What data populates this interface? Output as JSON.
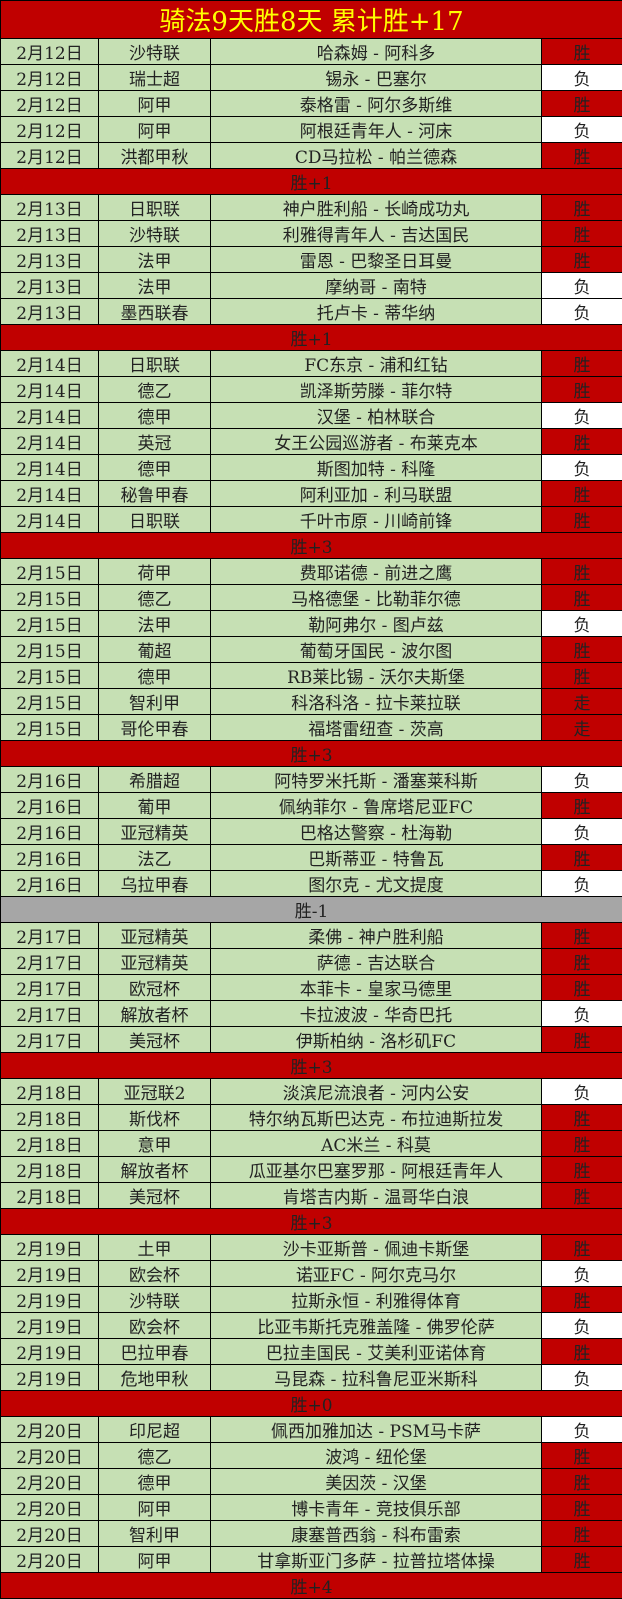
{
  "title": "骑法9天胜8天  累计胜+17",
  "colors": {
    "win": "#c00000",
    "loss": "#ffffff",
    "push": "#c00000",
    "row": "#c6e0b4",
    "summary": "#c00000",
    "summary_neutral": "#a6a6a6",
    "title_text": "#ffff00"
  },
  "groups": [
    {
      "rows": [
        [
          "2月12日",
          "沙特联",
          "哈森姆 - 阿科多",
          "胜"
        ],
        [
          "2月12日",
          "瑞士超",
          "锡永 - 巴塞尔",
          "负"
        ],
        [
          "2月12日",
          "阿甲",
          "泰格雷 - 阿尔多斯维",
          "胜"
        ],
        [
          "2月12日",
          "阿甲",
          "阿根廷青年人 - 河床",
          "负"
        ],
        [
          "2月12日",
          "洪都甲秋",
          "CD马拉松 - 帕兰德森",
          "胜"
        ]
      ],
      "summary": "胜+1"
    },
    {
      "rows": [
        [
          "2月13日",
          "日职联",
          "神户胜利船 - 长崎成功丸",
          "胜"
        ],
        [
          "2月13日",
          "沙特联",
          "利雅得青年人 - 吉达国民",
          "胜"
        ],
        [
          "2月13日",
          "法甲",
          "雷恩 - 巴黎圣日耳曼",
          "胜"
        ],
        [
          "2月13日",
          "法甲",
          "摩纳哥 - 南特",
          "负"
        ],
        [
          "2月13日",
          "墨西联春",
          "托卢卡 - 蒂华纳",
          "负"
        ]
      ],
      "summary": "胜+1"
    },
    {
      "rows": [
        [
          "2月14日",
          "日职联",
          "FC东京 - 浦和红钻",
          "胜"
        ],
        [
          "2月14日",
          "德乙",
          "凯泽斯劳滕 - 菲尔特",
          "胜"
        ],
        [
          "2月14日",
          "德甲",
          "汉堡 - 柏林联合",
          "负"
        ],
        [
          "2月14日",
          "英冠",
          "女王公园巡游者 - 布莱克本",
          "胜"
        ],
        [
          "2月14日",
          "德甲",
          "斯图加特 - 科隆",
          "负"
        ],
        [
          "2月14日",
          "秘鲁甲春",
          "阿利亚加 - 利马联盟",
          "胜"
        ],
        [
          "2月14日",
          "日职联",
          "千叶市原 - 川崎前锋",
          "胜"
        ]
      ],
      "summary": "胜+3"
    },
    {
      "rows": [
        [
          "2月15日",
          "荷甲",
          "费耶诺德 - 前进之鹰",
          "胜"
        ],
        [
          "2月15日",
          "德乙",
          "马格德堡 - 比勒菲尔德",
          "胜"
        ],
        [
          "2月15日",
          "法甲",
          "勒阿弗尔 - 图卢兹",
          "负"
        ],
        [
          "2月15日",
          "葡超",
          "葡萄牙国民 - 波尔图",
          "胜"
        ],
        [
          "2月15日",
          "德甲",
          "RB莱比锡 - 沃尔夫斯堡",
          "胜"
        ],
        [
          "2月15日",
          "智利甲",
          "科洛科洛 - 拉卡莱拉联",
          "走"
        ],
        [
          "2月15日",
          "哥伦甲春",
          "福塔雷纽查 - 茨高",
          "走"
        ]
      ],
      "summary": "胜+3"
    },
    {
      "rows": [
        [
          "2月16日",
          "希腊超",
          "阿特罗米托斯 - 潘塞莱科斯",
          "负"
        ],
        [
          "2月16日",
          "葡甲",
          "佩纳菲尔 - 鲁席塔尼亚FC",
          "胜"
        ],
        [
          "2月16日",
          "亚冠精英",
          "巴格达警察 - 杜海勒",
          "负"
        ],
        [
          "2月16日",
          "法乙",
          "巴斯蒂亚 - 特鲁瓦",
          "胜"
        ],
        [
          "2月16日",
          "乌拉甲春",
          "图尔克 - 尤文提度",
          "负"
        ]
      ],
      "summary": "胜-1",
      "neutral": true
    },
    {
      "rows": [
        [
          "2月17日",
          "亚冠精英",
          "柔佛 - 神户胜利船",
          "胜"
        ],
        [
          "2月17日",
          "亚冠精英",
          "萨德 - 吉达联合",
          "胜"
        ],
        [
          "2月17日",
          "欧冠杯",
          "本菲卡 - 皇家马德里",
          "胜"
        ],
        [
          "2月17日",
          "解放者杯",
          "卡拉波波 - 华奇巴托",
          "负"
        ],
        [
          "2月17日",
          "美冠杯",
          "伊斯柏纳 - 洛杉矶FC",
          "胜"
        ]
      ],
      "summary": "胜+3"
    },
    {
      "rows": [
        [
          "2月18日",
          "亚冠联2",
          "淡滨尼流浪者 - 河内公安",
          "负"
        ],
        [
          "2月18日",
          "斯伐杯",
          "特尔纳瓦斯巴达克 - 布拉迪斯拉发",
          "胜"
        ],
        [
          "2月18日",
          "意甲",
          "AC米兰 - 科莫",
          "胜"
        ],
        [
          "2月18日",
          "解放者杯",
          "瓜亚基尔巴塞罗那 - 阿根廷青年人",
          "胜"
        ],
        [
          "2月18日",
          "美冠杯",
          "肯塔吉内斯 - 温哥华白浪",
          "胜"
        ]
      ],
      "summary": "胜+3"
    },
    {
      "rows": [
        [
          "2月19日",
          "土甲",
          "沙卡亚斯普 - 佩迪卡斯堡",
          "胜"
        ],
        [
          "2月19日",
          "欧会杯",
          "诺亚FC - 阿尔克马尔",
          "负"
        ],
        [
          "2月19日",
          "沙特联",
          "拉斯永恒 - 利雅得体育",
          "胜"
        ],
        [
          "2月19日",
          "欧会杯",
          "比亚韦斯托克雅盖隆 - 佛罗伦萨",
          "负"
        ],
        [
          "2月19日",
          "巴拉甲春",
          "巴拉圭国民 - 艾美利亚诺体育",
          "胜"
        ],
        [
          "2月19日",
          "危地甲秋",
          "马昆森 - 拉科鲁尼亚米斯科",
          "负"
        ]
      ],
      "summary": "胜+0"
    },
    {
      "rows": [
        [
          "2月20日",
          "印尼超",
          "佩西加雅加达 - PSM马卡萨",
          "负"
        ],
        [
          "2月20日",
          "德乙",
          "波鸿 - 纽伦堡",
          "胜"
        ],
        [
          "2月20日",
          "德甲",
          "美因茨 - 汉堡",
          "胜"
        ],
        [
          "2月20日",
          "阿甲",
          "博卡青年 - 竞技俱乐部",
          "胜"
        ],
        [
          "2月20日",
          "智利甲",
          "康塞普西翁 - 科布雷索",
          "胜"
        ],
        [
          "2月20日",
          "阿甲",
          "甘拿斯亚门多萨 - 拉普拉塔体操",
          "胜"
        ]
      ],
      "summary": "胜+4"
    }
  ]
}
